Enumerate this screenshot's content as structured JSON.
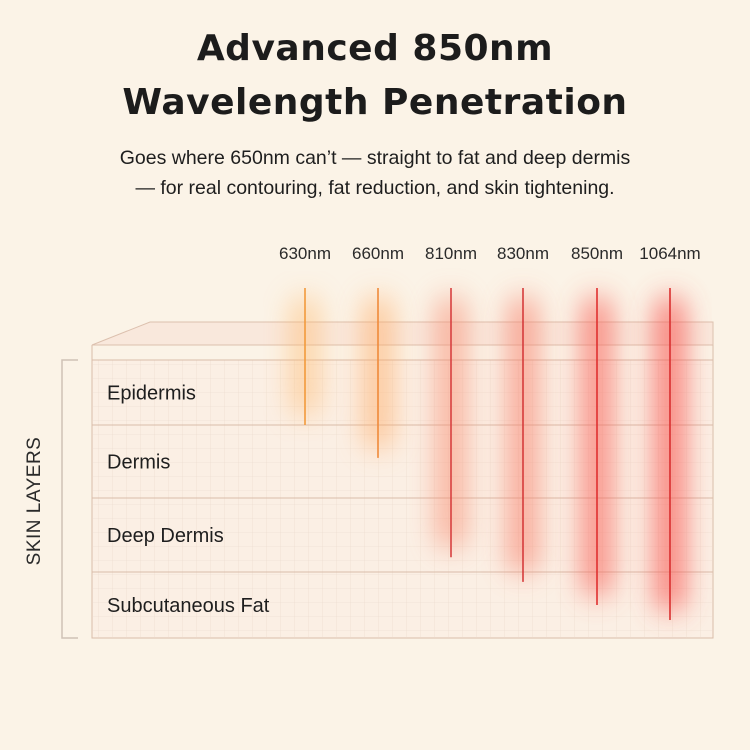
{
  "title": {
    "line1": "Advanced 850nm",
    "line2": "Wavelength Penetration"
  },
  "subtitle": {
    "line1": "Goes where 650nm can’t — straight to fat and deep dermis",
    "line2": "— for real contouring, fat reduction, and skin tightening."
  },
  "axis_label": "SKIN LAYERS",
  "layers": [
    {
      "label": "Epidermis"
    },
    {
      "label": "Dermis"
    },
    {
      "label": "Deep Dermis"
    },
    {
      "label": "Subcutaneous Fat"
    }
  ],
  "wavelengths": [
    {
      "label": "630nm",
      "depth_layer": 1,
      "color": "#f29a3c",
      "glow": "#ffb86a"
    },
    {
      "label": "660nm",
      "depth_layer": 1.45,
      "color": "#f08a3a",
      "glow": "#ffa75e"
    },
    {
      "label": "810nm",
      "depth_layer": 2.8,
      "color": "#d84040",
      "glow": "#f78a70"
    },
    {
      "label": "830nm",
      "depth_layer": 3.15,
      "color": "#d63b3b",
      "glow": "#f77f6a"
    },
    {
      "label": "850nm",
      "depth_layer": 3.5,
      "color": "#e03030",
      "glow": "#f8645a"
    },
    {
      "label": "1064nm",
      "depth_layer": 4.35,
      "color": "#d92f2f",
      "glow": "#f75a55"
    }
  ],
  "colors": {
    "background": "#fbf3e7",
    "grid": "#e6d2c2",
    "layer_border": "#d9bcaa"
  }
}
